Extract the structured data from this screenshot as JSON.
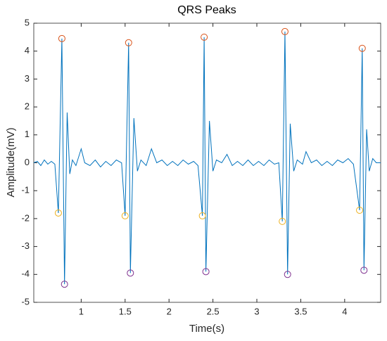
{
  "chart_data": {
    "type": "line",
    "title": "QRS Peaks",
    "xlabel": "Time(s)",
    "ylabel": "Amplitude(mV)",
    "xlim": [
      0.46,
      4.41
    ],
    "ylim": [
      -5,
      5
    ],
    "xticks": [
      1,
      1.5,
      2,
      2.5,
      3,
      3.5,
      4
    ],
    "yticks": [
      -5,
      -4,
      -3,
      -2,
      -1,
      0,
      1,
      2,
      3,
      4,
      5
    ],
    "grid": false,
    "series": [
      {
        "color": "#0072BD",
        "x": [
          0.46,
          0.5,
          0.54,
          0.58,
          0.62,
          0.66,
          0.7,
          0.74,
          0.78,
          0.81,
          0.84,
          0.87,
          0.9,
          0.94,
          1.0,
          1.04,
          1.1,
          1.16,
          1.22,
          1.28,
          1.34,
          1.4,
          1.46,
          1.5,
          1.54,
          1.56,
          1.6,
          1.64,
          1.68,
          1.74,
          1.8,
          1.86,
          1.92,
          1.98,
          2.04,
          2.1,
          2.16,
          2.22,
          2.28,
          2.33,
          2.38,
          2.4,
          2.42,
          2.46,
          2.5,
          2.54,
          2.6,
          2.66,
          2.72,
          2.78,
          2.84,
          2.9,
          2.96,
          3.02,
          3.08,
          3.14,
          3.2,
          3.25,
          3.29,
          3.32,
          3.35,
          3.38,
          3.42,
          3.46,
          3.52,
          3.56,
          3.62,
          3.68,
          3.74,
          3.8,
          3.86,
          3.92,
          3.98,
          4.04,
          4.1,
          4.17,
          4.2,
          4.22,
          4.25,
          4.28,
          4.32,
          4.36,
          4.41
        ],
        "values": [
          0.0,
          0.05,
          -0.1,
          0.1,
          -0.05,
          0.05,
          -0.05,
          -1.8,
          4.45,
          -4.35,
          1.8,
          -0.4,
          0.1,
          -0.1,
          0.5,
          0.0,
          -0.1,
          0.1,
          -0.15,
          0.05,
          -0.1,
          0.1,
          0.0,
          -1.9,
          4.3,
          -3.95,
          1.6,
          -0.3,
          0.1,
          -0.1,
          0.5,
          0.0,
          0.1,
          -0.1,
          0.05,
          -0.1,
          0.1,
          -0.05,
          0.05,
          -0.1,
          -1.9,
          4.5,
          -3.9,
          1.5,
          -0.3,
          0.1,
          0.0,
          0.3,
          -0.1,
          0.05,
          -0.1,
          0.1,
          -0.1,
          0.05,
          -0.1,
          0.1,
          -0.05,
          0.0,
          -2.1,
          4.7,
          -4.0,
          1.4,
          -0.3,
          0.1,
          -0.05,
          0.4,
          0.0,
          0.1,
          -0.1,
          0.05,
          -0.1,
          0.1,
          0.0,
          0.15,
          -0.05,
          -1.7,
          4.1,
          -3.85,
          1.2,
          -0.3,
          0.15,
          0.0,
          0.0
        ]
      },
      {
        "color": "#D95319",
        "marker": "o",
        "x": [
          0.78,
          1.54,
          2.4,
          3.32,
          4.2
        ],
        "values": [
          4.45,
          4.3,
          4.5,
          4.7,
          4.1
        ]
      },
      {
        "color": "#EDB120",
        "marker": "o",
        "x": [
          0.74,
          1.5,
          2.38,
          3.29,
          4.17
        ],
        "values": [
          -1.8,
          -1.9,
          -1.9,
          -2.1,
          -1.7
        ]
      },
      {
        "color": "#7E2F8E",
        "marker": "o",
        "x": [
          0.81,
          1.56,
          2.42,
          3.35,
          4.22
        ],
        "values": [
          -4.35,
          -3.95,
          -3.9,
          -4.0,
          -3.85
        ]
      }
    ]
  }
}
